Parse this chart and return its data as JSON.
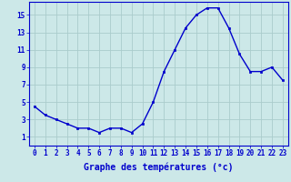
{
  "x": [
    0,
    1,
    2,
    3,
    4,
    5,
    6,
    7,
    8,
    9,
    10,
    11,
    12,
    13,
    14,
    15,
    16,
    17,
    18,
    19,
    20,
    21,
    22,
    23
  ],
  "y": [
    4.5,
    3.5,
    3.0,
    2.5,
    2.0,
    2.0,
    1.5,
    2.0,
    2.0,
    1.5,
    2.5,
    5.0,
    8.5,
    11.0,
    13.5,
    15.0,
    15.8,
    15.8,
    13.5,
    10.5,
    8.5,
    8.5,
    9.0,
    7.5
  ],
  "line_color": "#0000cc",
  "marker": "s",
  "markersize": 2.0,
  "linewidth": 1.0,
  "xlabel": "Graphe des températures (°c)",
  "xlim": [
    -0.5,
    23.5
  ],
  "ylim": [
    0,
    16.5
  ],
  "xticks": [
    0,
    1,
    2,
    3,
    4,
    5,
    6,
    7,
    8,
    9,
    10,
    11,
    12,
    13,
    14,
    15,
    16,
    17,
    18,
    19,
    20,
    21,
    22,
    23
  ],
  "yticks": [
    1,
    3,
    5,
    7,
    9,
    11,
    13,
    15
  ],
  "bg_color": "#cce8e8",
  "grid_color": "#aacccc",
  "tick_label_fontsize": 5.5,
  "xlabel_fontsize": 7.0,
  "tick_color": "#0000cc"
}
